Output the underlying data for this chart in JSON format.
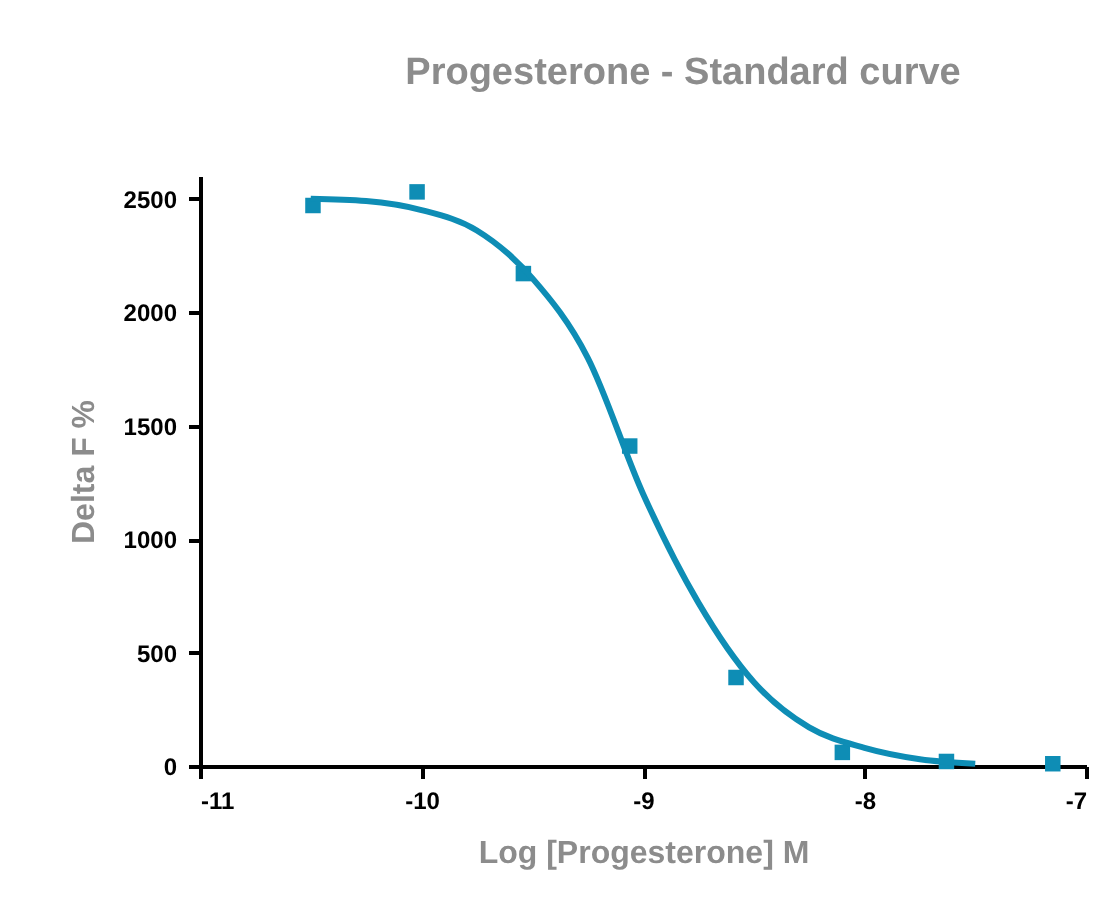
{
  "chart_data": {
    "type": "scatter",
    "title": "Progesterone - Standard curve",
    "xlabel": "Log [Progesterone] M",
    "ylabel": "Delta F %",
    "xlim": [
      -11,
      -7
    ],
    "xticks": [
      -11,
      -10,
      -9,
      -8,
      -7
    ],
    "ylim": [
      0,
      2600
    ],
    "yticks": [
      0,
      500,
      1000,
      1500,
      2000,
      2500
    ],
    "grid": false,
    "series": [
      {
        "marker": "square",
        "color": "#0e8db5",
        "x": [
          -10.49,
          -10.02,
          -9.54,
          -9.06,
          -8.58,
          -8.1,
          -7.63,
          -7.15
        ],
        "values": [
          2470,
          2530,
          2170,
          1410,
          390,
          60,
          20,
          10
        ]
      },
      {
        "type": "line",
        "marker": "none",
        "line_style": "solid",
        "color": "#0e8db5",
        "x": [
          -10.5,
          -10.25,
          -10.0,
          -9.75,
          -9.5,
          -9.25,
          -9.0,
          -8.75,
          -8.5,
          -8.25,
          -8.0,
          -7.75,
          -7.5
        ],
        "values": [
          2500,
          2490,
          2450,
          2360,
          2150,
          1800,
          1200,
          720,
          370,
          170,
          80,
          30,
          10
        ]
      }
    ]
  }
}
